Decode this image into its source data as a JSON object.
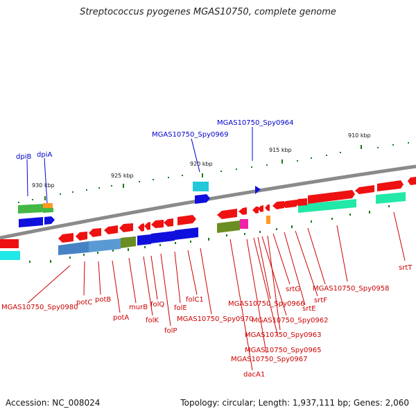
{
  "title": "Streptococcus pyogenes MGAS10750, complete genome",
  "footer": {
    "accession": "Accession: NC_008024",
    "topology": "Topology: circular; Length: 1,937,111 bp; Genes: 2,060"
  },
  "colors": {
    "backbone": "#8a8a8a",
    "tick": "#1a7a1a",
    "label_red": "#cc0000",
    "label_blue": "#0000cc"
  },
  "kbp_labels": [
    "930 kbp",
    "925 kbp",
    "920 kbp",
    "915 kbp",
    "910 kbp"
  ],
  "blue_labels": [
    "dpiB",
    "dpiA",
    "MGAS10750_Spy0969",
    "MGAS10750_Spy0964"
  ],
  "red_labels": [
    "MGAS10750_Spy0980",
    "potC",
    "potB",
    "potA",
    "murB",
    "folK",
    "folQ",
    "folP",
    "folE",
    "folC1",
    "MGAS10750_Spy0970",
    "MGAS10750_Spy0966",
    "MGAS10750_Spy0962",
    "MGAS10750_Spy0963",
    "MGAS10750_Spy0965",
    "MGAS10750_Spy0967",
    "dacA1",
    "srtG",
    "srtE",
    "srtF",
    "MGAS10750_Spy0958",
    "srtT"
  ]
}
